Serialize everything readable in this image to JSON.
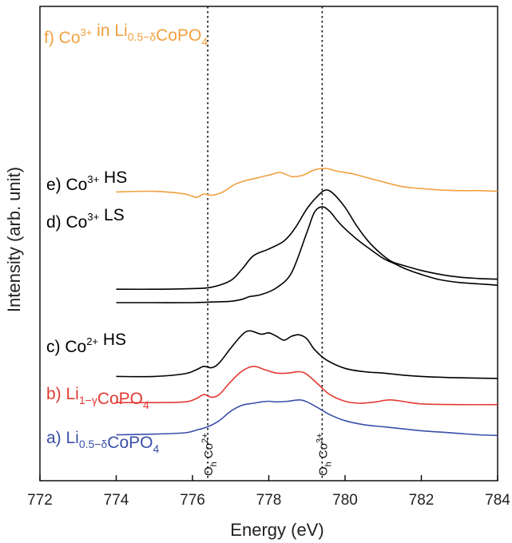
{
  "chart_data": {
    "type": "line",
    "xlabel": "Energy (eV)",
    "ylabel": "Intensity (arb. unit)",
    "xlim": [
      772,
      784
    ],
    "xticks": [
      "772",
      "774",
      "776",
      "778",
      "780",
      "782",
      "784"
    ],
    "yticks": "none",
    "grid": false,
    "legend": "labels placed left of each curve",
    "reference_lines": [
      {
        "x": 776.4,
        "label_main": "O",
        "label_sub": "h",
        "label_ion": "Co",
        "label_sup": "2+"
      },
      {
        "x": 779.4,
        "label_main": "O",
        "label_sub": "h",
        "label_ion": "Co",
        "label_sup": "3+"
      }
    ],
    "series": [
      {
        "name": "a) Li0.5−δCoPO4",
        "label_parts": {
          "pre": "a) Li",
          "sub": "0.5−δ",
          "post": "CoPO",
          "sub2": "4"
        },
        "color": "#3a4fa8",
        "x": [
          774.0,
          775.0,
          775.8,
          776.1,
          776.4,
          776.7,
          777.0,
          777.3,
          777.6,
          777.8,
          778.0,
          778.2,
          778.5,
          778.8,
          779.0,
          779.3,
          779.6,
          780.0,
          780.5,
          781.0,
          781.5,
          782.0,
          782.5,
          783.0,
          783.5,
          784.0
        ],
        "y": [
          0.03,
          0.04,
          0.06,
          0.1,
          0.15,
          0.24,
          0.38,
          0.47,
          0.5,
          0.52,
          0.53,
          0.52,
          0.53,
          0.55,
          0.52,
          0.43,
          0.33,
          0.24,
          0.18,
          0.15,
          0.12,
          0.09,
          0.07,
          0.05,
          0.03,
          0.02
        ]
      },
      {
        "name": "b) Li1−γCoPO4",
        "label_parts": {
          "pre": "b) Li",
          "sub": "1−γ",
          "post": "CoPO",
          "sub2": "4"
        },
        "color": "#e23a32",
        "x": [
          774.0,
          775.0,
          775.8,
          776.1,
          776.3,
          776.5,
          776.7,
          777.0,
          777.3,
          777.6,
          777.9,
          778.2,
          778.5,
          778.8,
          779.0,
          779.3,
          779.6,
          780.0,
          780.4,
          780.8,
          781.0,
          781.2,
          781.5,
          782.0,
          783.0,
          784.0
        ],
        "y": [
          0.51,
          0.51,
          0.52,
          0.57,
          0.63,
          0.59,
          0.63,
          0.82,
          0.98,
          1.05,
          1.0,
          0.95,
          0.95,
          0.97,
          0.93,
          0.78,
          0.63,
          0.53,
          0.5,
          0.52,
          0.54,
          0.55,
          0.53,
          0.49,
          0.48,
          0.48
        ]
      },
      {
        "name": "c) Co2+ HS",
        "label_parts": {
          "pre": "c) Co",
          "sup": "2+",
          "post": " HS"
        },
        "color": "#000000",
        "x": [
          774.0,
          775.0,
          775.8,
          776.1,
          776.3,
          776.5,
          776.7,
          777.0,
          777.3,
          777.5,
          777.8,
          778.0,
          778.2,
          778.4,
          778.6,
          778.8,
          779.0,
          779.2,
          779.5,
          780.0,
          780.5,
          781.0,
          781.5,
          782.0,
          783.0,
          784.0
        ],
        "y": [
          0.9,
          0.9,
          0.94,
          1.0,
          1.05,
          1.03,
          1.1,
          1.32,
          1.52,
          1.58,
          1.53,
          1.55,
          1.5,
          1.44,
          1.5,
          1.52,
          1.46,
          1.3,
          1.15,
          1.02,
          0.97,
          0.95,
          0.92,
          0.9,
          0.88,
          0.87
        ]
      },
      {
        "name": "d) Co3+ LS",
        "label_parts": {
          "pre": "d) Co",
          "sup": "3+",
          "post": " LS"
        },
        "color": "#000000",
        "x": [
          774.0,
          775.0,
          776.0,
          776.5,
          777.0,
          777.3,
          777.5,
          777.8,
          778.2,
          778.6,
          779.0,
          779.2,
          779.4,
          779.6,
          779.8,
          780.0,
          780.3,
          780.6,
          781.0,
          781.3,
          781.6,
          782.0,
          782.5,
          783.0,
          783.5,
          784.0
        ],
        "y": [
          2.0,
          2.0,
          2.0,
          2.01,
          2.02,
          2.05,
          2.09,
          2.12,
          2.22,
          2.45,
          3.05,
          3.35,
          3.43,
          3.36,
          3.22,
          3.1,
          2.95,
          2.82,
          2.66,
          2.58,
          2.5,
          2.42,
          2.34,
          2.3,
          2.28,
          2.26
        ]
      },
      {
        "name": "e) Co3+ HS",
        "label_parts": {
          "pre": "e) Co",
          "sup": "3+",
          "post": " HS"
        },
        "color": "#000000",
        "x": [
          774.0,
          775.0,
          776.0,
          776.5,
          777.0,
          777.3,
          777.6,
          778.0,
          778.4,
          778.7,
          779.0,
          779.3,
          779.5,
          779.7,
          780.0,
          780.3,
          780.6,
          780.9,
          781.2,
          781.5,
          782.0,
          782.5,
          783.0,
          783.5,
          784.0
        ],
        "y": [
          2.2,
          2.2,
          2.21,
          2.23,
          2.33,
          2.5,
          2.7,
          2.8,
          2.92,
          3.12,
          3.4,
          3.6,
          3.68,
          3.62,
          3.42,
          3.15,
          2.92,
          2.75,
          2.62,
          2.56,
          2.48,
          2.42,
          2.38,
          2.36,
          2.35
        ]
      },
      {
        "name": "f) Co3+ in Li0.5−δCoPO4",
        "label_parts": {
          "pre": "f) Co",
          "sup": "3+",
          "mid": " in Li",
          "sub": "0.5−δ",
          "post": "CoPO",
          "sub2": "4"
        },
        "color": "#f0a040",
        "x": [
          774.0,
          775.0,
          775.8,
          776.1,
          776.3,
          776.5,
          776.8,
          777.1,
          777.4,
          777.7,
          778.0,
          778.3,
          778.6,
          778.9,
          779.2,
          779.5,
          779.8,
          780.2,
          780.6,
          781.0,
          781.5,
          782.0,
          782.5,
          783.0,
          783.5,
          784.0
        ],
        "y": [
          3.65,
          3.66,
          3.62,
          3.57,
          3.62,
          3.6,
          3.65,
          3.76,
          3.82,
          3.86,
          3.9,
          3.94,
          3.88,
          3.9,
          3.98,
          4.0,
          3.96,
          3.92,
          3.86,
          3.8,
          3.73,
          3.7,
          3.68,
          3.67,
          3.67,
          3.66
        ]
      }
    ]
  }
}
